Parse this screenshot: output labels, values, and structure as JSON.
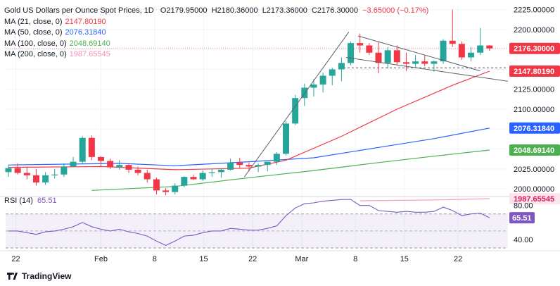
{
  "legend": {
    "symbol": "Gold US Dollars per Ounce Spot Prices, 1D",
    "open": "O2179.95000",
    "high": "H2180.36000",
    "low": "L2173.36000",
    "close": "C2176.30000",
    "change": "−3.65000 (−0.17%)",
    "ma21": {
      "label": "MA (21, close, 0)",
      "value": "2147.80190",
      "color": "#f23645"
    },
    "ma50": {
      "label": "MA (50, close, 0)",
      "value": "2076.31840",
      "color": "#2962ff"
    },
    "ma100": {
      "label": "MA (100, close, 0)",
      "value": "2048.69140",
      "color": "#4caf50"
    },
    "ma200": {
      "label": "MA (200, close, 0)",
      "value": "1987.65545",
      "color": "#f7a1b3"
    }
  },
  "rsi_legend": {
    "label": "RSI (14)",
    "value": "65.51",
    "color": "#7e57c2"
  },
  "price_axis": {
    "ticks": [
      "2225.00000",
      "2200.00000",
      "2175.00000",
      "2150.00000",
      "2125.00000",
      "2100.00000",
      "2075.00000",
      "2050.00000",
      "2025.00000",
      "2000.00000"
    ],
    "badges": [
      {
        "text": "2176.30000",
        "value": 2176.3,
        "bg": "#f23645",
        "fg": "#ffffff"
      },
      {
        "text": "2147.80190",
        "value": 2147.8,
        "bg": "#f23645",
        "fg": "#ffffff"
      },
      {
        "text": "2076.31840",
        "value": 2076.3,
        "bg": "#2962ff",
        "fg": "#ffffff"
      },
      {
        "text": "2048.69140",
        "value": 2048.7,
        "bg": "#4caf50",
        "fg": "#ffffff"
      },
      {
        "text": "1987.65545",
        "value": 1987.7,
        "bg": "#fce4ec",
        "fg": "#d81b60"
      }
    ]
  },
  "rsi_axis": {
    "ticks": [
      "80.00",
      "40.00"
    ],
    "badge": {
      "text": "65.51",
      "value": 65.51,
      "bg": "#7e57c2",
      "fg": "#ffffff"
    },
    "range": [
      30,
      88
    ],
    "band": [
      30,
      70
    ],
    "mid": 50
  },
  "time_axis": [
    "22",
    "Feb",
    "8",
    "15",
    "22",
    "Mar",
    "8",
    "15",
    "22"
  ],
  "brand": "TradingView",
  "colors": {
    "up": "#26a69a",
    "down": "#f23645"
  },
  "chart_data": {
    "type": "candlestick",
    "title": "Gold US Dollars per Ounce Spot Prices, 1D",
    "ylim": [
      1993,
      2230
    ],
    "candles": [
      [
        2021,
        2030,
        2015,
        2026
      ],
      [
        2026,
        2032,
        2018,
        2020
      ],
      [
        2020,
        2028,
        2012,
        2017
      ],
      [
        2017,
        2025,
        2004,
        2008
      ],
      [
        2008,
        2021,
        2005,
        2017
      ],
      [
        2017,
        2025,
        2013,
        2018
      ],
      [
        2018,
        2032,
        2015,
        2028
      ],
      [
        2028,
        2040,
        2027,
        2034
      ],
      [
        2034,
        2066,
        2032,
        2064
      ],
      [
        2064,
        2067,
        2036,
        2040
      ],
      [
        2040,
        2041,
        2028,
        2035
      ],
      [
        2035,
        2038,
        2025,
        2027
      ],
      [
        2027,
        2036,
        2024,
        2030
      ],
      [
        2030,
        2031,
        2020,
        2024
      ],
      [
        2024,
        2028,
        2017,
        2020
      ],
      [
        2020,
        2024,
        2008,
        2012
      ],
      [
        2012,
        2014,
        1993,
        1998
      ],
      [
        1998,
        2001,
        1992,
        1996
      ],
      [
        1996,
        2007,
        1993,
        2004
      ],
      [
        2004,
        2016,
        2002,
        2015
      ],
      [
        2015,
        2018,
        2011,
        2012
      ],
      [
        2012,
        2023,
        2010,
        2020
      ],
      [
        2020,
        2025,
        2015,
        2021
      ],
      [
        2021,
        2025,
        2014,
        2024
      ],
      [
        2024,
        2038,
        2023,
        2033
      ],
      [
        2033,
        2039,
        2026,
        2030
      ],
      [
        2030,
        2033,
        2022,
        2028
      ],
      [
        2028,
        2032,
        2021,
        2030
      ],
      [
        2030,
        2034,
        2022,
        2034
      ],
      [
        2034,
        2046,
        2030,
        2044
      ],
      [
        2044,
        2085,
        2042,
        2082
      ],
      [
        2082,
        2118,
        2080,
        2114
      ],
      [
        2114,
        2132,
        2104,
        2127
      ],
      [
        2127,
        2138,
        2116,
        2131
      ],
      [
        2131,
        2146,
        2121,
        2142
      ],
      [
        2142,
        2152,
        2130,
        2150
      ],
      [
        2150,
        2165,
        2135,
        2158
      ],
      [
        2158,
        2185,
        2155,
        2183
      ],
      [
        2183,
        2195,
        2171,
        2180
      ],
      [
        2180,
        2183,
        2168,
        2171
      ],
      [
        2171,
        2185,
        2145,
        2158
      ],
      [
        2158,
        2178,
        2151,
        2174
      ],
      [
        2174,
        2180,
        2155,
        2159
      ],
      [
        2159,
        2171,
        2148,
        2157
      ],
      [
        2157,
        2168,
        2152,
        2160
      ],
      [
        2160,
        2168,
        2154,
        2157
      ],
      [
        2157,
        2161,
        2147,
        2160
      ],
      [
        2160,
        2188,
        2157,
        2186
      ],
      [
        2186,
        2225,
        2178,
        2182
      ],
      [
        2182,
        2185,
        2162,
        2165
      ],
      [
        2165,
        2178,
        2160,
        2171
      ],
      [
        2171,
        2202,
        2168,
        2180
      ],
      [
        2179.95,
        2180.36,
        2173.36,
        2176.3
      ]
    ],
    "rsi": [
      50,
      50,
      48,
      46,
      49,
      50,
      52,
      55,
      60,
      55,
      52,
      50,
      52,
      49,
      47,
      44,
      38,
      33,
      38,
      44,
      45,
      48,
      50,
      50,
      53,
      52,
      51,
      51,
      53,
      56,
      68,
      77,
      82,
      83,
      85,
      86,
      87,
      87,
      80,
      80,
      74,
      73,
      72,
      73,
      72,
      72,
      73,
      78,
      74,
      68,
      70,
      71,
      65.51
    ],
    "ma21": [
      {
        "i": 0,
        "v": 2027
      },
      {
        "i": 10,
        "v": 2028
      },
      {
        "i": 18,
        "v": 2024
      },
      {
        "i": 26,
        "v": 2026
      },
      {
        "i": 30,
        "v": 2036
      },
      {
        "i": 36,
        "v": 2066
      },
      {
        "i": 42,
        "v": 2100
      },
      {
        "i": 48,
        "v": 2130
      },
      {
        "i": 52,
        "v": 2147.8
      }
    ],
    "ma50": [
      {
        "i": 0,
        "v": 2030
      },
      {
        "i": 12,
        "v": 2032
      },
      {
        "i": 18,
        "v": 2029
      },
      {
        "i": 26,
        "v": 2034
      },
      {
        "i": 33,
        "v": 2039
      },
      {
        "i": 40,
        "v": 2052
      },
      {
        "i": 46,
        "v": 2063
      },
      {
        "i": 52,
        "v": 2076.3
      }
    ],
    "ma100": [
      {
        "i": 9,
        "v": 1998
      },
      {
        "i": 18,
        "v": 2003
      },
      {
        "i": 26,
        "v": 2014
      },
      {
        "i": 33,
        "v": 2023
      },
      {
        "i": 40,
        "v": 2033
      },
      {
        "i": 46,
        "v": 2041
      },
      {
        "i": 52,
        "v": 2048.7
      }
    ],
    "ma200": [
      {
        "i": 38,
        "v": 1985
      },
      {
        "i": 46,
        "v": 1986
      },
      {
        "i": 52,
        "v": 1987.7
      }
    ],
    "trendlines": [
      {
        "i1": 25.5,
        "v1": 2015,
        "i2": 36.8,
        "v2": 2197
      },
      {
        "i1": 37.8,
        "v1": 2192,
        "i2": 51,
        "v2": 2148
      },
      {
        "i1": 36.5,
        "v1": 2165,
        "i2": 54,
        "v2": 2135
      }
    ],
    "resistance_level": 2152,
    "current_price": 2176.3
  }
}
